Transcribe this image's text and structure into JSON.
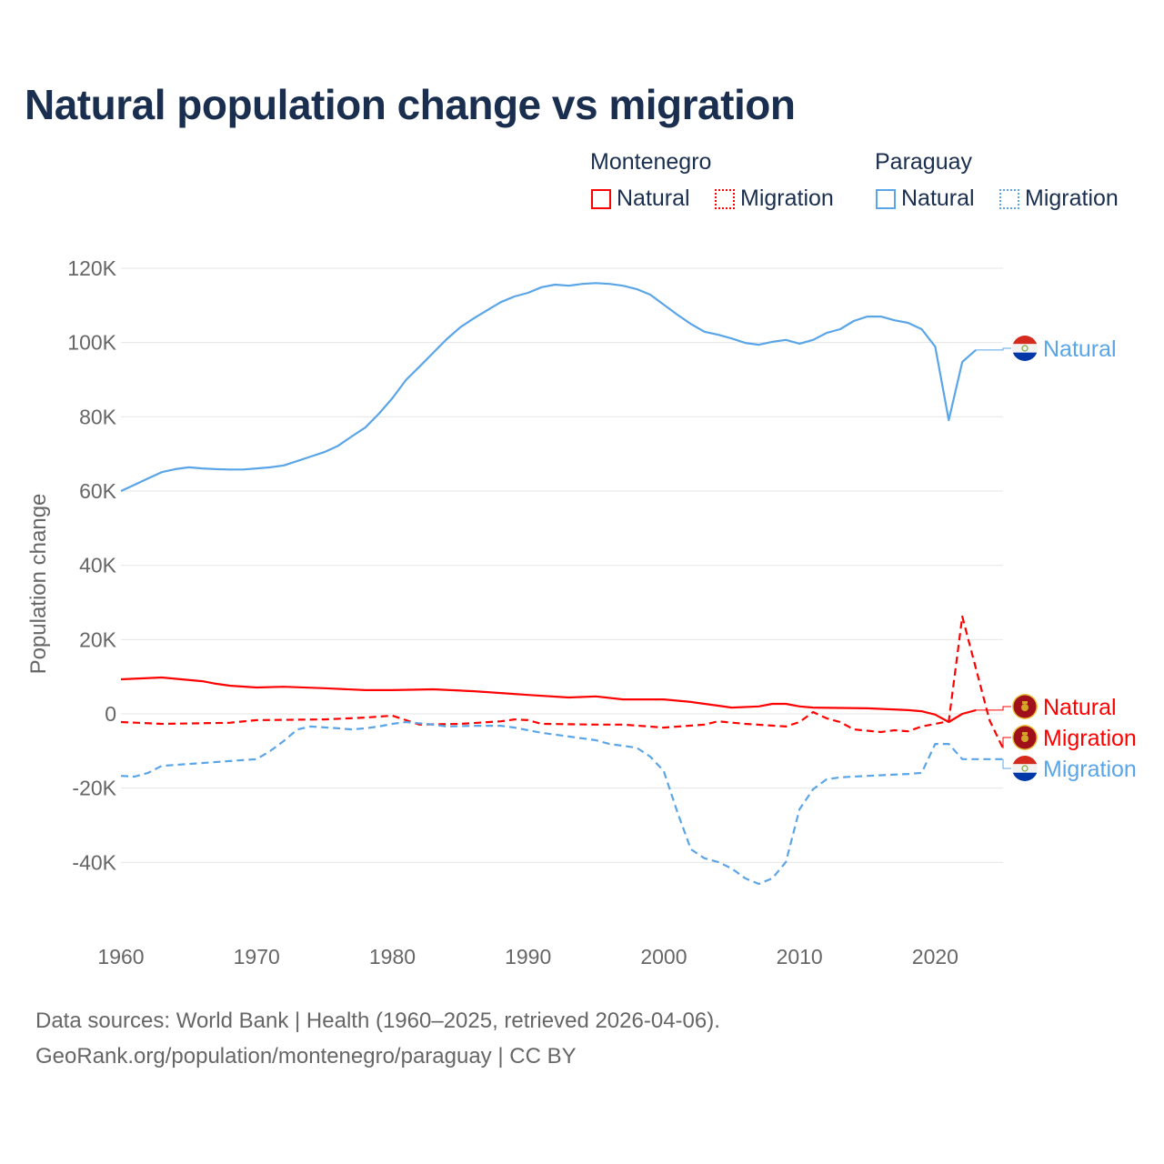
{
  "title": "Natural population change vs migration",
  "legend": {
    "groups": [
      {
        "name": "Montenegro",
        "items": [
          "Natural",
          "Migration"
        ]
      },
      {
        "name": "Paraguay",
        "items": [
          "Natural",
          "Migration"
        ]
      }
    ]
  },
  "footer": {
    "line1": "Data sources: World Bank | Health (1960–2025, retrieved 2026-04-06).",
    "line2": "GeoRank.org/population/montenegro/paraguay | CC BY"
  },
  "chart_data": {
    "type": "line",
    "title": "Natural population change vs migration",
    "xlabel": "",
    "ylabel": "Population change",
    "xlim": [
      1960,
      2025
    ],
    "ylim": [
      -50000,
      120000
    ],
    "x_ticks": [
      "1960",
      "1970",
      "1980",
      "1990",
      "2000",
      "2010",
      "2020"
    ],
    "y_ticks": [
      {
        "value": 120000,
        "label": "120K"
      },
      {
        "value": 100000,
        "label": "100K"
      },
      {
        "value": 80000,
        "label": "80K"
      },
      {
        "value": 60000,
        "label": "60K"
      },
      {
        "value": 40000,
        "label": "40K"
      },
      {
        "value": 20000,
        "label": "20K"
      },
      {
        "value": 0,
        "label": "0"
      },
      {
        "value": -20000,
        "label": "-20K"
      },
      {
        "value": -40000,
        "label": "-40K"
      }
    ],
    "grid": true,
    "legend_position": "top-right",
    "series": [
      {
        "name": "Paraguay Natural",
        "label": "Natural",
        "country": "Paraguay",
        "color": "#5aa5e8",
        "dash": "solid",
        "flag": "paraguay-flag",
        "points": [
          [
            1960,
            60000
          ],
          [
            1961,
            61700
          ],
          [
            1962,
            63400
          ],
          [
            1963,
            65100
          ],
          [
            1964,
            65900
          ],
          [
            1965,
            66400
          ],
          [
            1966,
            66100
          ],
          [
            1967,
            65900
          ],
          [
            1968,
            65800
          ],
          [
            1969,
            65800
          ],
          [
            1970,
            66100
          ],
          [
            1971,
            66400
          ],
          [
            1972,
            66900
          ],
          [
            1973,
            68100
          ],
          [
            1974,
            69300
          ],
          [
            1975,
            70500
          ],
          [
            1976,
            72200
          ],
          [
            1977,
            74700
          ],
          [
            1978,
            77100
          ],
          [
            1979,
            80800
          ],
          [
            1980,
            85000
          ],
          [
            1981,
            89900
          ],
          [
            1982,
            93500
          ],
          [
            1983,
            97200
          ],
          [
            1984,
            100900
          ],
          [
            1985,
            104100
          ],
          [
            1986,
            106500
          ],
          [
            1987,
            108700
          ],
          [
            1988,
            110900
          ],
          [
            1989,
            112400
          ],
          [
            1990,
            113400
          ],
          [
            1991,
            114900
          ],
          [
            1992,
            115600
          ],
          [
            1993,
            115300
          ],
          [
            1994,
            115800
          ],
          [
            1995,
            116000
          ],
          [
            1996,
            115800
          ],
          [
            1997,
            115300
          ],
          [
            1998,
            114400
          ],
          [
            1999,
            112900
          ],
          [
            2000,
            110200
          ],
          [
            2001,
            107500
          ],
          [
            2002,
            105000
          ],
          [
            2003,
            102900
          ],
          [
            2004,
            102100
          ],
          [
            2005,
            101100
          ],
          [
            2006,
            99900
          ],
          [
            2007,
            99400
          ],
          [
            2008,
            100200
          ],
          [
            2009,
            100700
          ],
          [
            2010,
            99700
          ],
          [
            2011,
            100700
          ],
          [
            2012,
            102600
          ],
          [
            2013,
            103600
          ],
          [
            2014,
            105800
          ],
          [
            2015,
            107000
          ],
          [
            2016,
            107000
          ],
          [
            2017,
            106000
          ],
          [
            2018,
            105300
          ],
          [
            2019,
            103600
          ],
          [
            2020,
            98900
          ],
          [
            2021,
            79100
          ],
          [
            2022,
            94800
          ],
          [
            2023,
            98000
          ]
        ]
      },
      {
        "name": "Montenegro Natural",
        "label": "Natural",
        "country": "Montenegro",
        "color": "#ff0000",
        "dash": "solid",
        "flag": "montenegro-flag",
        "points": [
          [
            1960,
            9300
          ],
          [
            1963,
            9800
          ],
          [
            1966,
            8800
          ],
          [
            1967,
            8100
          ],
          [
            1968,
            7600
          ],
          [
            1970,
            7100
          ],
          [
            1972,
            7300
          ],
          [
            1975,
            6900
          ],
          [
            1978,
            6400
          ],
          [
            1980,
            6400
          ],
          [
            1983,
            6600
          ],
          [
            1986,
            6100
          ],
          [
            1988,
            5600
          ],
          [
            1990,
            5100
          ],
          [
            1993,
            4400
          ],
          [
            1995,
            4700
          ],
          [
            1997,
            3900
          ],
          [
            1999,
            3900
          ],
          [
            2000,
            3900
          ],
          [
            2002,
            3200
          ],
          [
            2004,
            2200
          ],
          [
            2005,
            1700
          ],
          [
            2007,
            2000
          ],
          [
            2008,
            2700
          ],
          [
            2009,
            2700
          ],
          [
            2010,
            2000
          ],
          [
            2011,
            1700
          ],
          [
            2015,
            1500
          ],
          [
            2018,
            1000
          ],
          [
            2019,
            700
          ],
          [
            2020,
            -200
          ],
          [
            2021,
            -2200
          ],
          [
            2022,
            0
          ],
          [
            2023,
            1000
          ]
        ]
      },
      {
        "name": "Montenegro Migration",
        "label": "Migration",
        "country": "Montenegro",
        "color": "#ff0000",
        "dash": "dashed",
        "flag": "montenegro-flag",
        "points": [
          [
            1960,
            -2200
          ],
          [
            1963,
            -2700
          ],
          [
            1968,
            -2400
          ],
          [
            1970,
            -1700
          ],
          [
            1975,
            -1500
          ],
          [
            1978,
            -1000
          ],
          [
            1980,
            -500
          ],
          [
            1982,
            -2900
          ],
          [
            1985,
            -2700
          ],
          [
            1988,
            -2000
          ],
          [
            1989,
            -1500
          ],
          [
            1990,
            -1700
          ],
          [
            1991,
            -2700
          ],
          [
            1995,
            -2900
          ],
          [
            1997,
            -2900
          ],
          [
            2000,
            -3700
          ],
          [
            2003,
            -2900
          ],
          [
            2004,
            -2000
          ],
          [
            2006,
            -2700
          ],
          [
            2009,
            -3400
          ],
          [
            2010,
            -2200
          ],
          [
            2011,
            500
          ],
          [
            2012,
            -1200
          ],
          [
            2013,
            -2200
          ],
          [
            2014,
            -4200
          ],
          [
            2016,
            -4900
          ],
          [
            2017,
            -4400
          ],
          [
            2018,
            -4700
          ],
          [
            2019,
            -3400
          ],
          [
            2020,
            -2700
          ],
          [
            2021,
            -2000
          ],
          [
            2022,
            26200
          ],
          [
            2023,
            12200
          ],
          [
            2024,
            -1700
          ],
          [
            2025,
            -9300
          ]
        ]
      },
      {
        "name": "Paraguay Migration",
        "label": "Migration",
        "country": "Paraguay",
        "color": "#5aa5e8",
        "dash": "dashed",
        "flag": "paraguay-flag",
        "points": [
          [
            1960,
            -16700
          ],
          [
            1961,
            -16900
          ],
          [
            1962,
            -15900
          ],
          [
            1963,
            -14000
          ],
          [
            1965,
            -13500
          ],
          [
            1968,
            -12700
          ],
          [
            1970,
            -12200
          ],
          [
            1971,
            -10000
          ],
          [
            1972,
            -7300
          ],
          [
            1973,
            -4200
          ],
          [
            1974,
            -3400
          ],
          [
            1976,
            -3900
          ],
          [
            1977,
            -4200
          ],
          [
            1978,
            -3900
          ],
          [
            1979,
            -3400
          ],
          [
            1980,
            -2700
          ],
          [
            1981,
            -2200
          ],
          [
            1983,
            -2900
          ],
          [
            1984,
            -3400
          ],
          [
            1986,
            -3200
          ],
          [
            1988,
            -3200
          ],
          [
            1989,
            -3700
          ],
          [
            1990,
            -4400
          ],
          [
            1991,
            -5100
          ],
          [
            1993,
            -6100
          ],
          [
            1995,
            -7100
          ],
          [
            1996,
            -8100
          ],
          [
            1998,
            -9100
          ],
          [
            1999,
            -11500
          ],
          [
            2000,
            -15400
          ],
          [
            2001,
            -26400
          ],
          [
            2002,
            -36500
          ],
          [
            2003,
            -38900
          ],
          [
            2004,
            -39900
          ],
          [
            2005,
            -41600
          ],
          [
            2006,
            -44300
          ],
          [
            2007,
            -45800
          ],
          [
            2008,
            -44300
          ],
          [
            2009,
            -39900
          ],
          [
            2010,
            -25700
          ],
          [
            2011,
            -20300
          ],
          [
            2012,
            -17600
          ],
          [
            2013,
            -17100
          ],
          [
            2015,
            -16700
          ],
          [
            2018,
            -16200
          ],
          [
            2019,
            -15900
          ],
          [
            2020,
            -8100
          ],
          [
            2021,
            -8100
          ],
          [
            2022,
            -12200
          ],
          [
            2023,
            -12200
          ],
          [
            2024,
            -12200
          ],
          [
            2025,
            -12200
          ]
        ]
      }
    ]
  }
}
